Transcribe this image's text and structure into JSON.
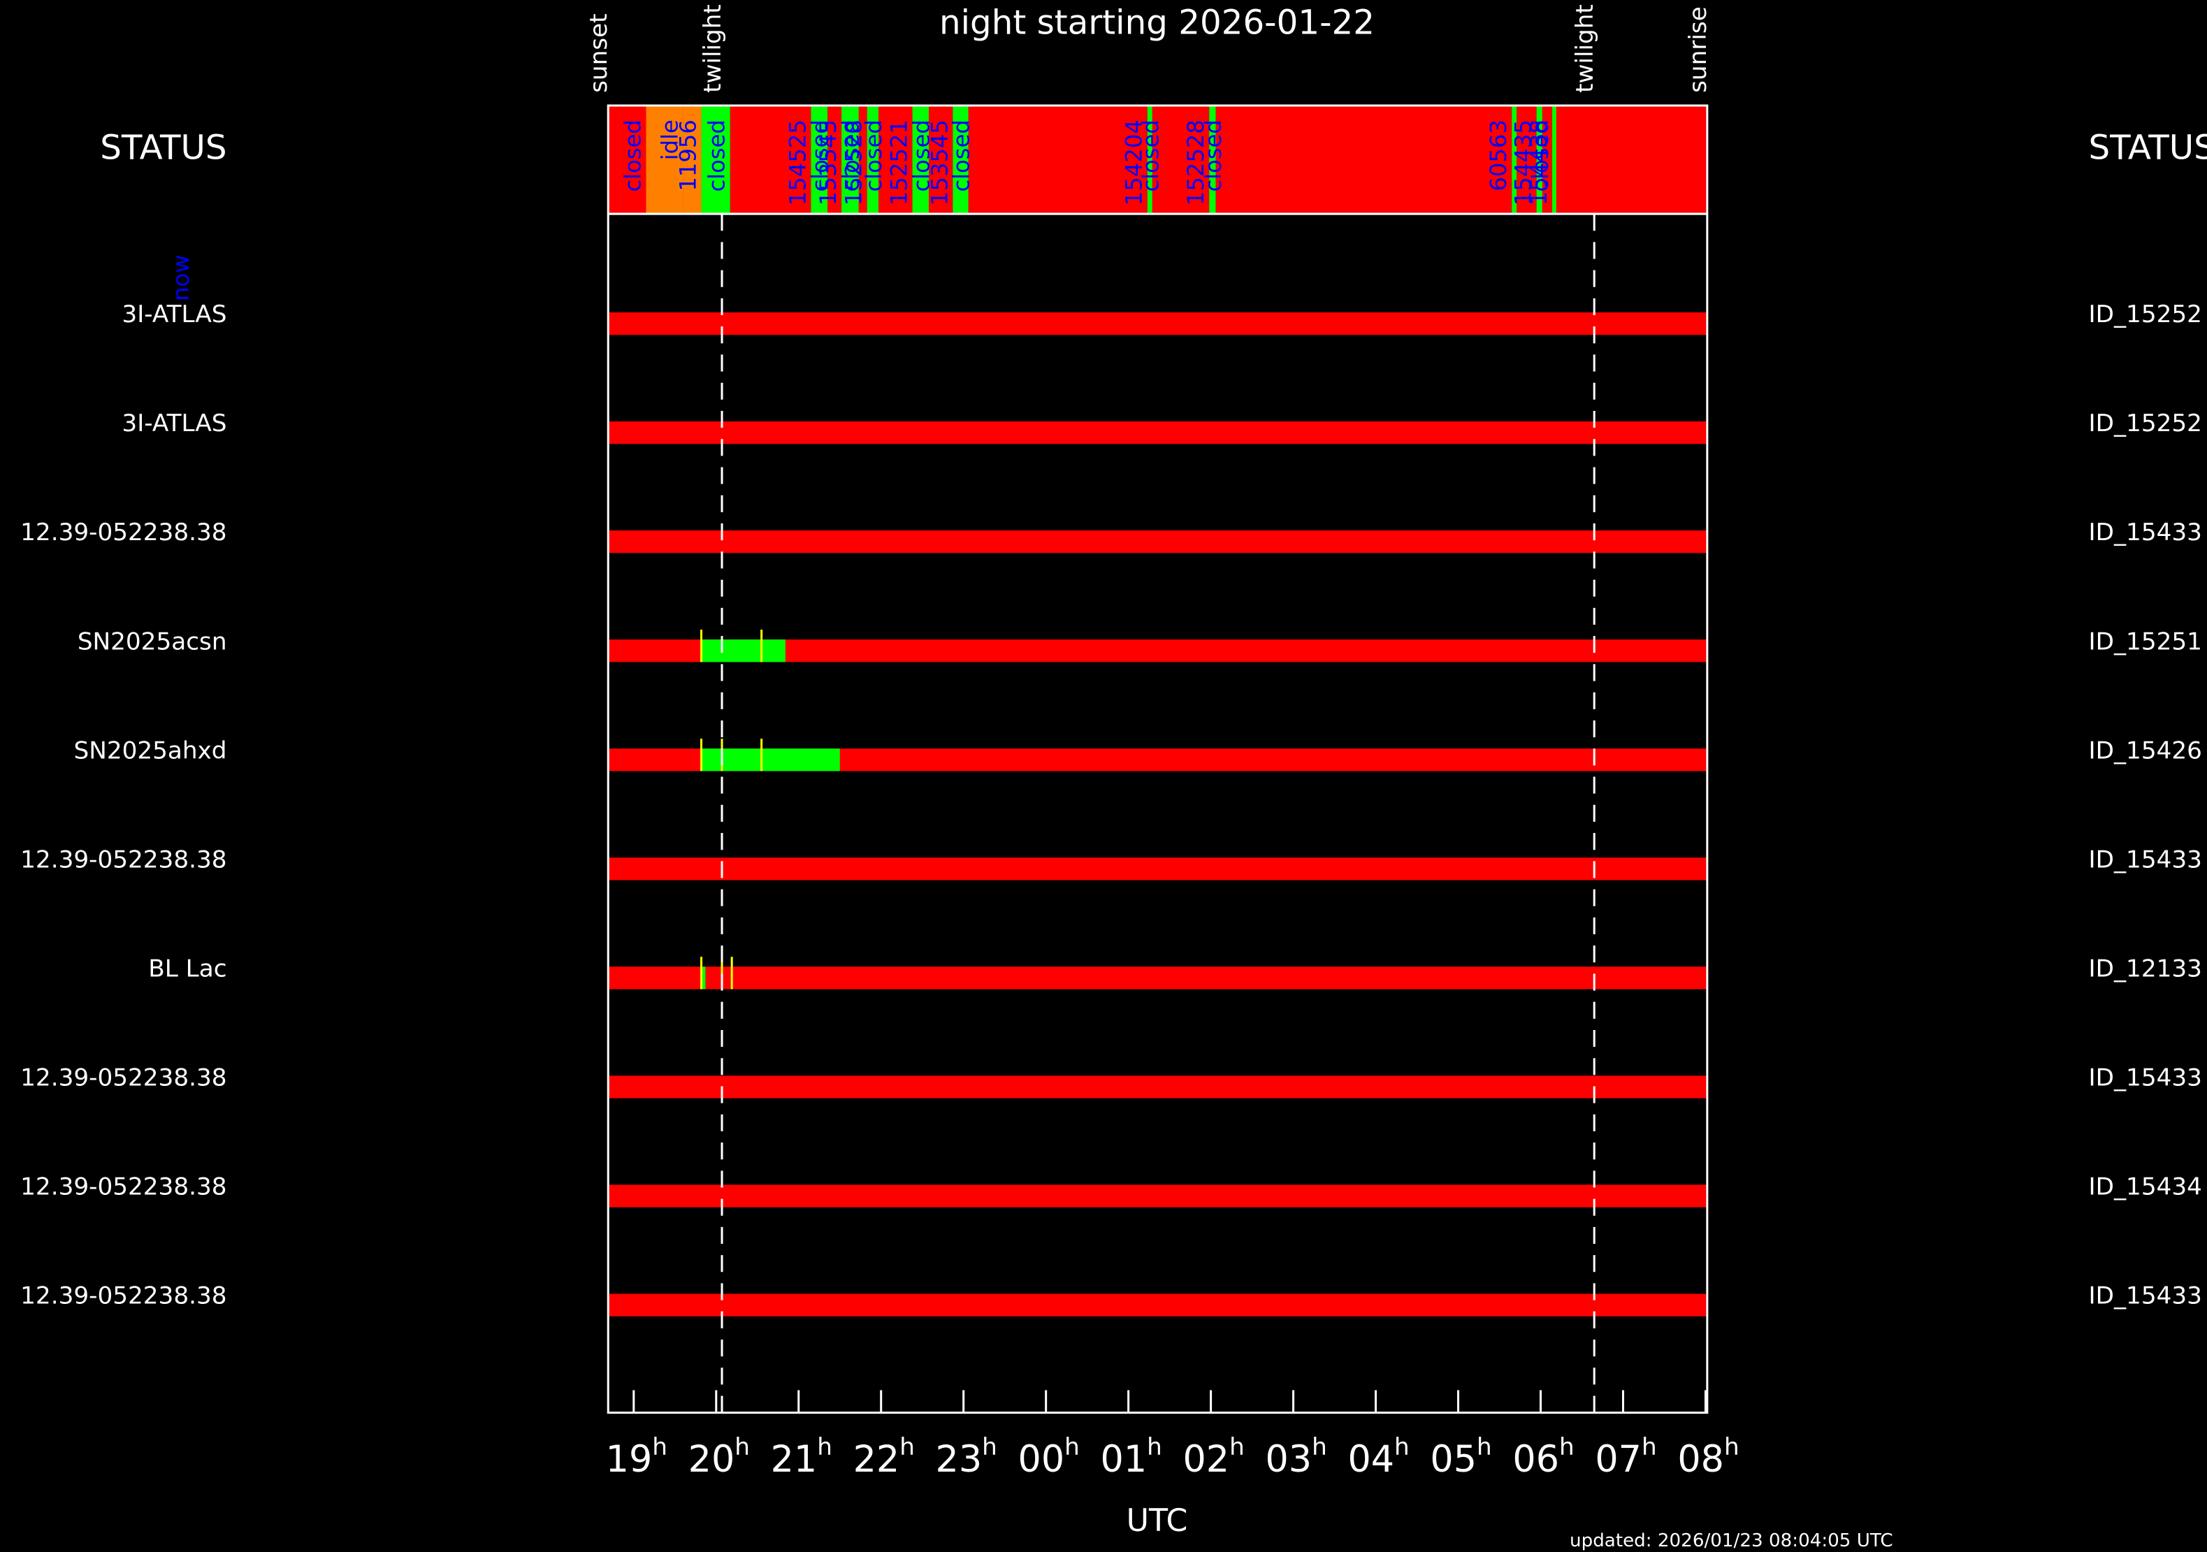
{
  "chart_data": {
    "type": "timeline",
    "title": "night starting 2026-01-22",
    "x_label": "UTC",
    "updated": "updated: 2026/01/23 08:04:05 UTC",
    "status_label": "STATUS",
    "now_label": "now",
    "xlim": [
      18.69,
      32.02
    ],
    "xticks": [
      19,
      20,
      21,
      22,
      23,
      {
        "value": 24,
        "label": "00"
      },
      {
        "value": 25,
        "label": "01"
      },
      {
        "value": 26,
        "label": "02"
      },
      {
        "value": 27,
        "label": "03"
      },
      {
        "value": 28,
        "label": "04"
      },
      {
        "value": 29,
        "label": "05"
      },
      {
        "value": 30,
        "label": "06"
      },
      {
        "value": 31,
        "label": "07"
      },
      {
        "value": 32,
        "label": "08"
      }
    ],
    "xtick_unit": "h",
    "events": [
      {
        "name": "sunset",
        "at": 18.69,
        "dashed": false
      },
      {
        "name": "twilight",
        "at": 20.07,
        "dashed": true
      },
      {
        "name": "twilight",
        "at": 30.65,
        "dashed": true
      },
      {
        "name": "sunrise",
        "at": 32.02,
        "dashed": false
      }
    ],
    "status_colors": {
      "red": "#ff0000",
      "orange": "#ff8000",
      "green": "#00ff00"
    },
    "status": [
      {
        "start": 18.69,
        "end": 19.15,
        "color": "red",
        "label": "closed"
      },
      {
        "start": 19.15,
        "end": 19.6,
        "color": "orange",
        "label": "idle"
      },
      {
        "start": 19.6,
        "end": 19.82,
        "color": "orange",
        "label": "11956"
      },
      {
        "start": 19.82,
        "end": 20.17,
        "color": "green",
        "label": "closed"
      },
      {
        "start": 20.17,
        "end": 21.15,
        "color": "red",
        "label": "154525"
      },
      {
        "start": 21.15,
        "end": 21.35,
        "color": "green",
        "label": "closed"
      },
      {
        "start": 21.35,
        "end": 21.52,
        "color": "red",
        "label": "153545"
      },
      {
        "start": 21.52,
        "end": 21.73,
        "color": "green",
        "label": "closed"
      },
      {
        "start": 21.73,
        "end": 21.83,
        "color": "red",
        "label": "152528"
      },
      {
        "start": 21.83,
        "end": 21.97,
        "color": "green",
        "label": "closed"
      },
      {
        "start": 21.97,
        "end": 22.38,
        "color": "red",
        "label": "152521"
      },
      {
        "start": 22.38,
        "end": 22.58,
        "color": "green",
        "label": "closed"
      },
      {
        "start": 22.58,
        "end": 22.87,
        "color": "red",
        "label": "153545"
      },
      {
        "start": 22.87,
        "end": 23.06,
        "color": "green",
        "label": "closed"
      },
      {
        "start": 23.06,
        "end": 25.23,
        "color": "red",
        "label": "154204"
      },
      {
        "start": 25.23,
        "end": 25.29,
        "color": "green",
        "label": "closed"
      },
      {
        "start": 25.29,
        "end": 25.98,
        "color": "red",
        "label": "152528"
      },
      {
        "start": 25.98,
        "end": 26.06,
        "color": "green",
        "label": "closed"
      },
      {
        "start": 26.06,
        "end": 29.65,
        "color": "red",
        "label": "60563"
      },
      {
        "start": 29.65,
        "end": 29.71,
        "color": "green",
        "label": null
      },
      {
        "start": 29.71,
        "end": 29.95,
        "color": "red",
        "label": "154435"
      },
      {
        "start": 29.95,
        "end": 30.02,
        "color": "green",
        "label": "closed"
      },
      {
        "start": 30.02,
        "end": 30.14,
        "color": "red",
        "label": "154438"
      },
      {
        "start": 30.14,
        "end": 30.19,
        "color": "green",
        "label": null
      },
      {
        "start": 30.19,
        "end": 32.02,
        "color": "red",
        "label": null
      }
    ],
    "track_color": "#ff0000",
    "window_color": "#00ff00",
    "mark_color": "#ffff00",
    "rows": [
      {
        "name": "3I-ATLAS",
        "id": "ID_15252",
        "windows": [],
        "marks": []
      },
      {
        "name": "3I-ATLAS",
        "id": "ID_15252",
        "windows": [],
        "marks": []
      },
      {
        "name": "12.39-052238.38",
        "id": "ID_15433",
        "windows": [],
        "marks": []
      },
      {
        "name": "SN2025acsn",
        "id": "ID_15251",
        "windows": [
          [
            19.82,
            20.84
          ]
        ],
        "marks": [
          19.82,
          20.55
        ]
      },
      {
        "name": "SN2025ahxd",
        "id": "ID_15426",
        "windows": [
          [
            19.82,
            21.5
          ]
        ],
        "marks": [
          19.82,
          20.07,
          20.55
        ]
      },
      {
        "name": "12.39-052238.38",
        "id": "ID_15433",
        "windows": [],
        "marks": []
      },
      {
        "name": "BL Lac",
        "id": "ID_12133",
        "windows": [
          [
            19.82,
            19.87
          ]
        ],
        "marks": [
          19.82,
          20.07,
          20.19
        ]
      },
      {
        "name": "12.39-052238.38",
        "id": "ID_15433",
        "windows": [],
        "marks": []
      },
      {
        "name": "12.39-052238.38",
        "id": "ID_15434",
        "windows": [],
        "marks": []
      },
      {
        "name": "12.39-052238.38",
        "id": "ID_15433",
        "windows": [],
        "marks": []
      }
    ]
  }
}
